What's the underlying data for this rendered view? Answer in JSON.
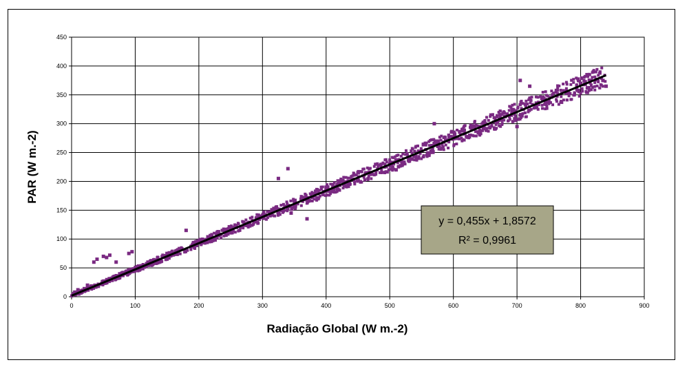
{
  "chart_data": {
    "type": "scatter",
    "title": "",
    "xlabel": "Radiação Global (W m.-2)",
    "ylabel": "PAR (W m.-2)",
    "xlim": [
      0,
      900
    ],
    "ylim": [
      0,
      450
    ],
    "xticks": [
      "0",
      "100",
      "200",
      "300",
      "400",
      "500",
      "600",
      "700",
      "800",
      "900"
    ],
    "yticks": [
      "0",
      "50",
      "100",
      "150",
      "200",
      "250",
      "300",
      "350",
      "400",
      "450"
    ],
    "grid": true,
    "legend": "none",
    "series": [
      {
        "marker_color": "#7a2a82",
        "slope": 0.455,
        "intercept": 1.8572,
        "x_range": [
          0,
          840
        ],
        "points": [
          [
            2,
            4
          ],
          [
            5,
            8
          ],
          [
            8,
            6
          ],
          [
            10,
            12
          ],
          [
            15,
            10
          ],
          [
            20,
            14
          ],
          [
            25,
            20
          ],
          [
            35,
            60
          ],
          [
            40,
            65
          ],
          [
            50,
            70
          ],
          [
            55,
            68
          ],
          [
            60,
            72
          ],
          [
            70,
            60
          ],
          [
            90,
            75
          ],
          [
            95,
            78
          ],
          [
            120,
            60
          ],
          [
            150,
            75
          ],
          [
            180,
            115
          ],
          [
            195,
            95
          ],
          [
            250,
            120
          ],
          [
            300,
            140
          ],
          [
            325,
            205
          ],
          [
            340,
            222
          ],
          [
            345,
            145
          ],
          [
            370,
            135
          ],
          [
            400,
            190
          ],
          [
            450,
            215
          ],
          [
            500,
            230
          ],
          [
            510,
            220
          ],
          [
            570,
            300
          ],
          [
            600,
            275
          ],
          [
            650,
            300
          ],
          [
            700,
            295
          ],
          [
            705,
            375
          ],
          [
            720,
            365
          ],
          [
            750,
            340
          ],
          [
            800,
            370
          ],
          [
            810,
            385
          ],
          [
            820,
            390
          ],
          [
            835,
            375
          ],
          [
            840,
            365
          ]
        ],
        "trendline_color": "#000000"
      }
    ],
    "annotation": {
      "equation": "y = 0,455x + 1,8572",
      "r2": "R² = 0,9961",
      "box_color": "#a7a688"
    },
    "plot_background": "#ffffff",
    "grid_color": "#000000"
  }
}
